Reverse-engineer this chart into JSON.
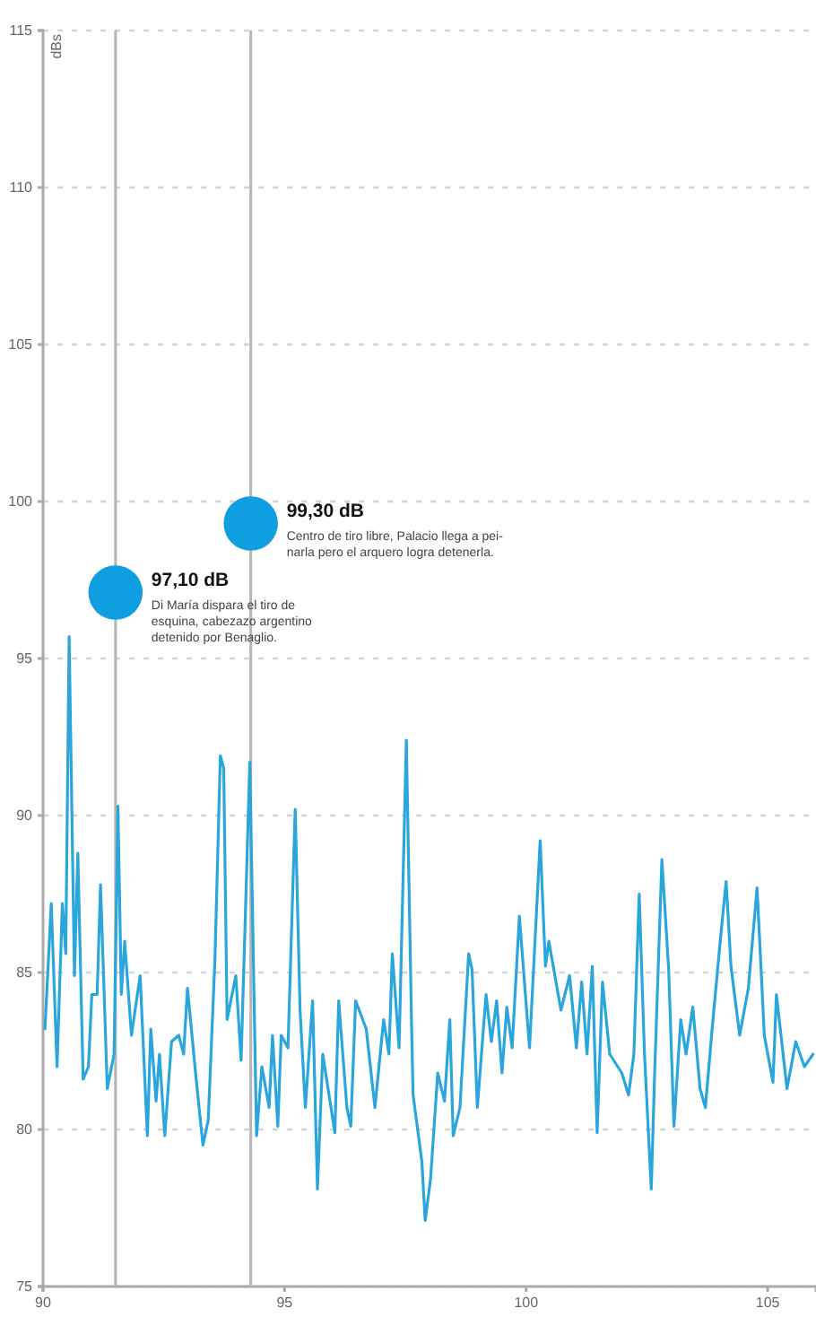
{
  "chart_data": {
    "type": "line",
    "ylabel": "dBs",
    "xlim": [
      90,
      106
    ],
    "xticks": [
      90,
      95,
      100,
      105
    ],
    "ylim": [
      75,
      115
    ],
    "yticks": [
      75,
      80,
      85,
      90,
      95,
      100,
      105,
      110,
      115
    ],
    "grid": "y",
    "marker": "none",
    "line_style": "solid",
    "series": [
      {
        "color": "#2ba6dc",
        "x": [
          90.04,
          90.17,
          90.29,
          90.4,
          90.47,
          90.54,
          90.65,
          90.72,
          90.83,
          90.94,
          91.01,
          91.12,
          91.19,
          91.33,
          91.47,
          91.55,
          91.62,
          91.69,
          91.83,
          92.01,
          92.16,
          92.23,
          92.34,
          92.41,
          92.52,
          92.66,
          92.81,
          92.91,
          92.99,
          93.17,
          93.31,
          93.42,
          93.56,
          93.67,
          93.74,
          93.81,
          93.99,
          94.1,
          94.28,
          94.42,
          94.53,
          94.68,
          94.75,
          94.86,
          94.93,
          95.07,
          95.22,
          95.32,
          95.43,
          95.58,
          95.68,
          95.79,
          95.94,
          96.04,
          96.12,
          96.29,
          96.37,
          96.47,
          96.69,
          96.87,
          97.05,
          97.16,
          97.23,
          97.37,
          97.52,
          97.63,
          97.66,
          97.84,
          97.91,
          98.02,
          98.17,
          98.31,
          98.42,
          98.49,
          98.63,
          98.81,
          98.88,
          98.99,
          99.17,
          99.28,
          99.39,
          99.5,
          99.6,
          99.71,
          99.86,
          100.07,
          100.29,
          100.4,
          100.47,
          100.72,
          100.9,
          101.04,
          101.15,
          101.26,
          101.37,
          101.47,
          101.58,
          101.73,
          101.98,
          102.12,
          102.23,
          102.34,
          102.45,
          102.59,
          102.66,
          102.81,
          102.95,
          103.06,
          103.2,
          103.31,
          103.45,
          103.6,
          103.71,
          103.85,
          104.03,
          104.14,
          104.24,
          104.42,
          104.6,
          104.78,
          104.93,
          105.11,
          105.18,
          105.4,
          105.58,
          105.76,
          105.94
        ],
        "values": [
          83.2,
          87.2,
          82.0,
          87.2,
          85.6,
          95.7,
          84.9,
          88.8,
          81.6,
          82.0,
          84.3,
          84.3,
          87.8,
          81.3,
          82.4,
          90.3,
          84.3,
          86.0,
          83.0,
          84.9,
          79.8,
          83.2,
          80.9,
          82.4,
          79.8,
          82.8,
          83.0,
          82.4,
          84.5,
          81.6,
          79.5,
          80.3,
          85.5,
          91.9,
          91.5,
          83.5,
          84.9,
          82.2,
          91.7,
          79.8,
          82.0,
          80.7,
          83.0,
          80.1,
          83.0,
          82.6,
          90.2,
          83.8,
          80.7,
          84.1,
          78.1,
          82.4,
          80.9,
          79.9,
          84.1,
          80.7,
          80.1,
          84.1,
          83.2,
          80.7,
          83.5,
          82.4,
          85.6,
          82.6,
          92.4,
          83.2,
          81.1,
          79.0,
          77.1,
          78.4,
          81.8,
          80.9,
          83.5,
          79.8,
          80.7,
          85.6,
          85.1,
          80.7,
          84.3,
          82.8,
          84.1,
          81.8,
          83.9,
          82.6,
          86.8,
          82.6,
          89.2,
          85.2,
          86.0,
          83.8,
          84.9,
          82.6,
          84.7,
          82.4,
          85.2,
          79.9,
          84.7,
          82.4,
          81.8,
          81.1,
          82.4,
          87.5,
          82.4,
          78.1,
          81.8,
          88.6,
          85.1,
          80.1,
          83.5,
          82.4,
          83.9,
          81.3,
          80.7,
          83.2,
          86.2,
          87.9,
          85.2,
          83.0,
          84.5,
          87.7,
          83.0,
          81.5,
          84.3,
          81.3,
          82.8,
          82.0,
          82.4
        ]
      },
      {
        "type": "scatter",
        "color": "#0f9fe0",
        "marker": "circle",
        "x": [
          91.5,
          94.3
        ],
        "values": [
          97.1,
          99.3
        ]
      }
    ],
    "ref_lines": [
      {
        "axis": "x",
        "value": 91.5,
        "color": "#b5b5b5"
      },
      {
        "axis": "x",
        "value": 94.3,
        "color": "#b5b5b5"
      }
    ],
    "annotations": [
      {
        "text": "97,10 dB\nDi María dispara el tiro de\nesquina, cabezazo argentino\ndetenido por Benaglio.",
        "x": 91.5,
        "y": 97.1
      },
      {
        "text": "99,30 dB\nCentro de tiro libre, Palacio llega a pei-\nnarla pero el arquero logra detenerla.",
        "x": 94.3,
        "y": 99.3
      }
    ]
  }
}
